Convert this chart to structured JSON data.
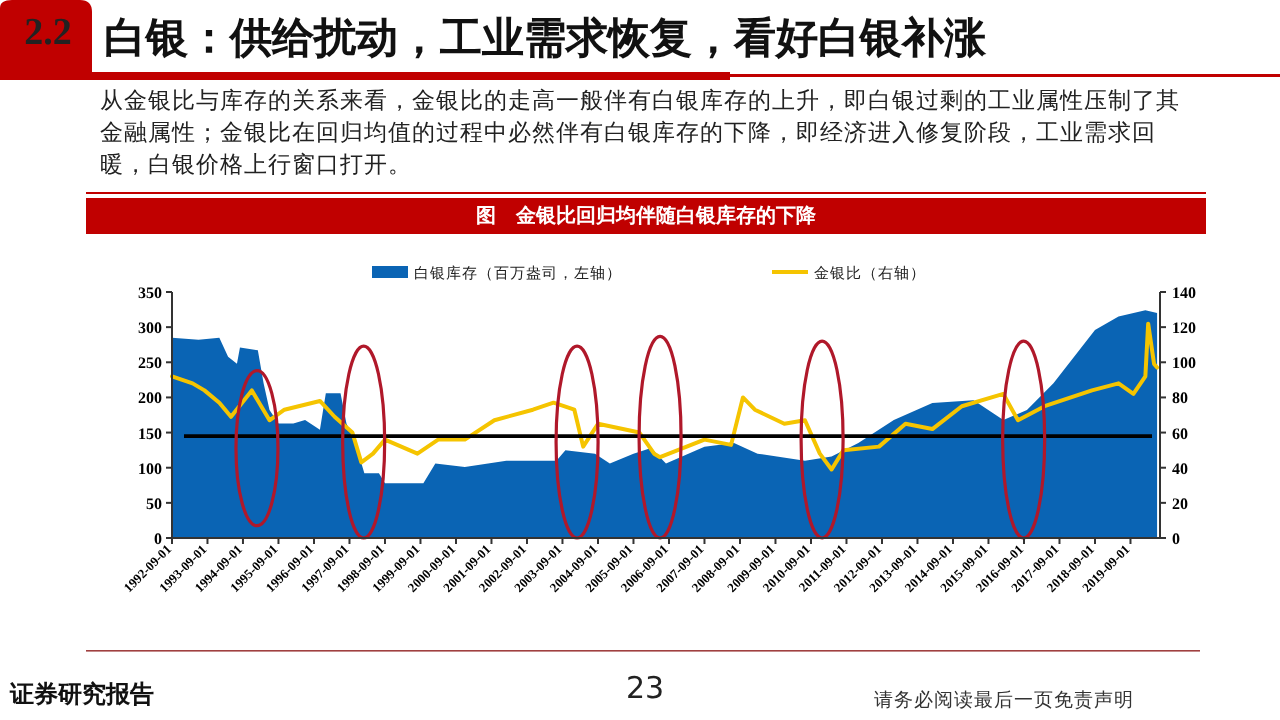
{
  "chart_data": {
    "type": "area",
    "title": "白银：供给扰动，工业需求恢复，看好白银补涨",
    "subtitle": "图　金银比回归均伴随白银库存的下降",
    "annotations": [
      "2.2",
      "从金银比与库存的关系来看，金银比的走高一般伴有白银库存的上升，即白银过剩的工业属性压制了其金融属性；金银比在回归均值的过程中必然伴有白银库存的下降，即经济进入修复阶段，工业需求回暖，白银价格上行窗口打开。",
      "证券研究报告",
      "23",
      "请务必阅读最后一页免责声明"
    ],
    "series": [
      {
        "name": "白银库存（百万盎司，左轴）",
        "color": "#0a64b4",
        "x": [
          "1992-09",
          "1993-06",
          "1994-01",
          "1994-04",
          "1994-07",
          "1994-08",
          "1995-02",
          "1995-04",
          "1995-06",
          "1995-09",
          "1996-02",
          "1996-06",
          "1996-11",
          "1997-01",
          "1997-06",
          "1997-08",
          "1997-11",
          "1998-02",
          "1998-07",
          "1998-09",
          "1999-10",
          "2000-02",
          "2000-12",
          "2002-02",
          "2003-07",
          "2003-10",
          "2004-08",
          "2005-01",
          "2005-09",
          "2006-03",
          "2006-08",
          "2007-09",
          "2008-07",
          "2009-03",
          "2010-07",
          "2011-04",
          "2012-01",
          "2013-01",
          "2014-02",
          "2015-04",
          "2016-02",
          "2016-10",
          "2017-07",
          "2018-09",
          "2019-05",
          "2020-02",
          "2020-06"
        ],
        "values": [
          285,
          282,
          285,
          258,
          248,
          271,
          267,
          220,
          182,
          163,
          163,
          168,
          154,
          206,
          206,
          163,
          135,
          92,
          92,
          78,
          78,
          106,
          101,
          110,
          110,
          125,
          120,
          106,
          120,
          128,
          106,
          130,
          135,
          120,
          110,
          116,
          135,
          168,
          192,
          196,
          168,
          182,
          220,
          296,
          315,
          324,
          320
        ]
      },
      {
        "name": "金银比（右轴）",
        "type": "line",
        "axis": "y2",
        "color": "#f5c400",
        "x": [
          "1992-09",
          "1993-04",
          "1993-08",
          "1994-01",
          "1994-05",
          "1994-12",
          "1995-06",
          "1995-11",
          "1996-11",
          "1997-04",
          "1997-10",
          "1998-01",
          "1998-05",
          "1998-09",
          "1999-08",
          "2000-03",
          "2000-12",
          "2001-10",
          "2002-11",
          "2003-06",
          "2004-01",
          "2004-04",
          "2004-09",
          "2005-11",
          "2006-04",
          "2006-06",
          "2007-09",
          "2008-06",
          "2008-10",
          "2009-02",
          "2009-12",
          "2010-07",
          "2010-12",
          "2011-04",
          "2011-08",
          "2012-08",
          "2013-05",
          "2014-02",
          "2014-12",
          "2016-02",
          "2016-07",
          "2017-04",
          "2018-08",
          "2019-05",
          "2019-10",
          "2020-02",
          "2020-03",
          "2020-05",
          "2020-06"
        ],
        "values": [
          92,
          88,
          84,
          77,
          69,
          84,
          67,
          73,
          78,
          69,
          60,
          43,
          48,
          56,
          48,
          56,
          56,
          67,
          73,
          77,
          73,
          52,
          65,
          60,
          48,
          46,
          56,
          53,
          80,
          73,
          65,
          67,
          48,
          39,
          50,
          52,
          65,
          62,
          75,
          82,
          67,
          75,
          84,
          88,
          82,
          92,
          122,
          99,
          97
        ]
      }
    ],
    "xlim": [
      "1992-09-01",
      "2020-07-01"
    ],
    "xticks": [
      "1992-09-01",
      "1993-09-01",
      "1994-09-01",
      "1995-09-01",
      "1996-09-01",
      "1997-09-01",
      "1998-09-01",
      "1999-09-01",
      "2000-09-01",
      "2001-09-01",
      "2002-09-01",
      "2003-09-01",
      "2004-09-01",
      "2005-09-01",
      "2006-09-01",
      "2007-09-01",
      "2008-09-01",
      "2009-09-01",
      "2010-09-01",
      "2011-09-01",
      "2012-09-01",
      "2013-09-01",
      "2014-09-01",
      "2015-09-01",
      "2016-09-01",
      "2017-09-01",
      "2018-09-01",
      "2019-09-01"
    ],
    "ylim": [
      0,
      350
    ],
    "yticks": [
      0,
      50,
      100,
      150,
      200,
      250,
      300,
      350
    ],
    "y2lim": [
      0,
      140
    ],
    "y2ticks": [
      0,
      20,
      40,
      60,
      80,
      100,
      120,
      140
    ],
    "ref_lines": [
      {
        "axis": "y2",
        "value": 58,
        "color": "#000000"
      }
    ],
    "legend": "top"
  }
}
